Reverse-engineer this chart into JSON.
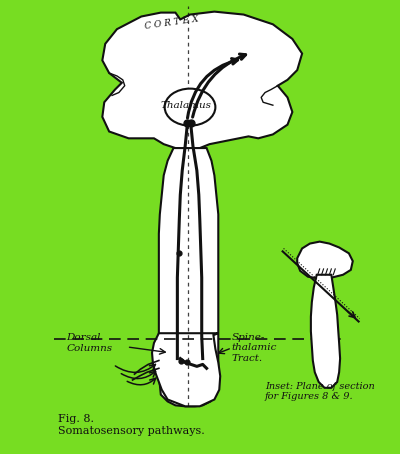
{
  "bg_color": "#77dd22",
  "line_color": "#111111",
  "title_text": "Fig. 8.\nSomatosensory pathways.",
  "inset_text": "Inset: Plane of section\nfor Figures 8 & 9.",
  "cortex_label": "C O R T E X",
  "thalamus_label": "Thalamus",
  "dorsal_label": "Dorsal\nColumns",
  "spinothal_label": "Spine-\nthalamic\nTract.",
  "fig_width": 4.0,
  "fig_height": 4.54
}
